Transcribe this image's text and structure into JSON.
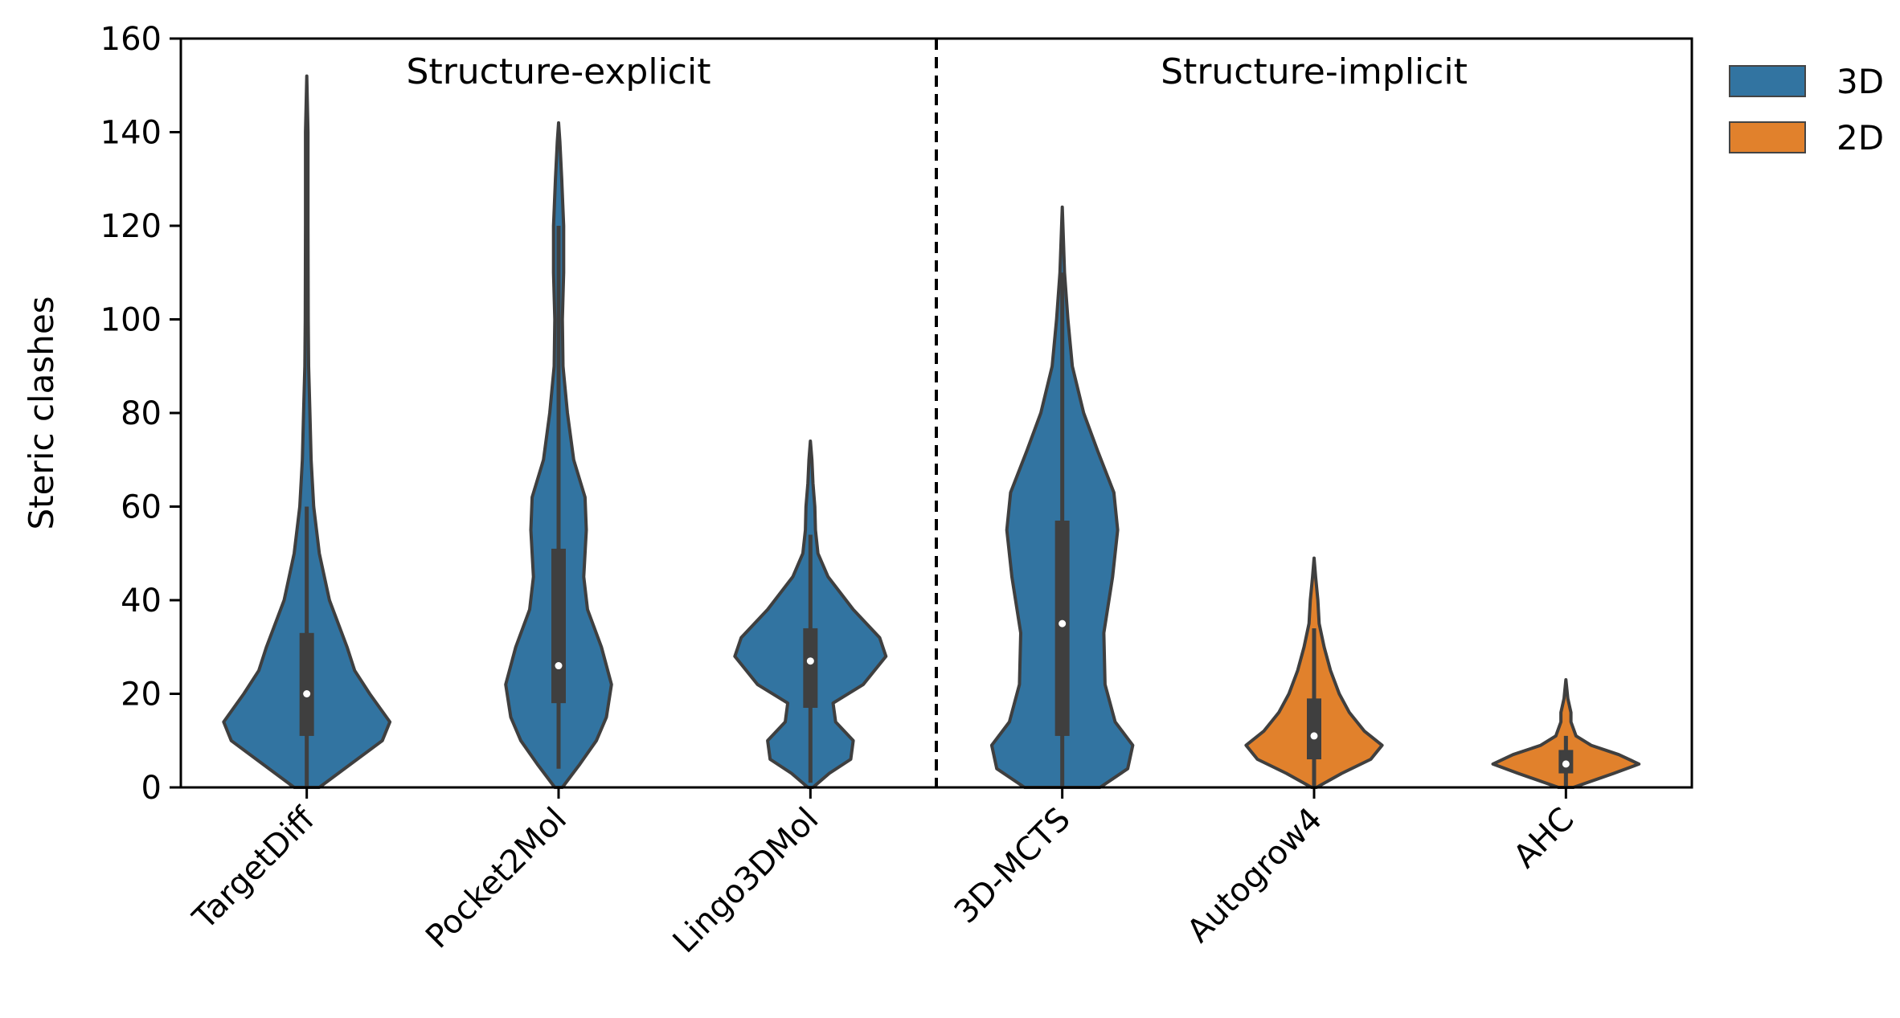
{
  "chart_data": {
    "type": "violin",
    "ylabel": "Steric clashes",
    "ylim": [
      0,
      160
    ],
    "yticks": [
      0,
      20,
      40,
      60,
      80,
      100,
      120,
      140,
      160
    ],
    "categories": [
      "TargetDiff",
      "Pocket2Mol",
      "Lingo3DMol",
      "3D-MCTS",
      "Autogrow4",
      "AHC"
    ],
    "sections": [
      {
        "label": "Structure-explicit"
      },
      {
        "label": "Structure-implicit"
      }
    ],
    "legend": {
      "position": "outside-top-right",
      "entries": [
        {
          "label": "3D",
          "color": "#3274a1"
        },
        {
          "label": "2D",
          "color": "#e1812c"
        }
      ]
    },
    "violins": [
      {
        "category": "TargetDiff",
        "group": "3D",
        "min": 0,
        "max": 152,
        "q1": 11,
        "median": 20,
        "q3": 33,
        "whisker_low": 0,
        "whisker_high": 60,
        "profile": [
          [
            0,
            0.1
          ],
          [
            5,
            0.35
          ],
          [
            10,
            0.6
          ],
          [
            14,
            0.66
          ],
          [
            20,
            0.5
          ],
          [
            25,
            0.38
          ],
          [
            30,
            0.32
          ],
          [
            40,
            0.18
          ],
          [
            50,
            0.1
          ],
          [
            60,
            0.055
          ],
          [
            70,
            0.035
          ],
          [
            80,
            0.025
          ],
          [
            90,
            0.015
          ],
          [
            100,
            0.012
          ],
          [
            120,
            0.01
          ],
          [
            140,
            0.01
          ],
          [
            152,
            0
          ]
        ]
      },
      {
        "category": "Pocket2Mol",
        "group": "3D",
        "min": 0,
        "max": 142,
        "q1": 18,
        "median": 26,
        "q3": 51,
        "whisker_low": 4,
        "whisker_high": 120,
        "profile": [
          [
            0,
            0.03
          ],
          [
            5,
            0.17
          ],
          [
            10,
            0.3
          ],
          [
            15,
            0.38
          ],
          [
            22,
            0.42
          ],
          [
            30,
            0.34
          ],
          [
            38,
            0.23
          ],
          [
            45,
            0.2
          ],
          [
            55,
            0.22
          ],
          [
            62,
            0.21
          ],
          [
            70,
            0.12
          ],
          [
            80,
            0.07
          ],
          [
            90,
            0.035
          ],
          [
            100,
            0.03
          ],
          [
            110,
            0.04
          ],
          [
            120,
            0.04
          ],
          [
            130,
            0.025
          ],
          [
            138,
            0.01
          ],
          [
            142,
            0
          ]
        ]
      },
      {
        "category": "Lingo3DMol",
        "group": "3D",
        "min": 0,
        "max": 74,
        "q1": 17,
        "median": 27,
        "q3": 34,
        "whisker_low": 1,
        "whisker_high": 54,
        "profile": [
          [
            0,
            0.02
          ],
          [
            3,
            0.15
          ],
          [
            6,
            0.32
          ],
          [
            10,
            0.34
          ],
          [
            14,
            0.2
          ],
          [
            18,
            0.18
          ],
          [
            22,
            0.42
          ],
          [
            28,
            0.6
          ],
          [
            32,
            0.55
          ],
          [
            38,
            0.34
          ],
          [
            45,
            0.14
          ],
          [
            50,
            0.06
          ],
          [
            55,
            0.04
          ],
          [
            60,
            0.035
          ],
          [
            65,
            0.02
          ],
          [
            70,
            0.012
          ],
          [
            74,
            0
          ]
        ]
      },
      {
        "category": "3D-MCTS",
        "group": "3D",
        "min": 0,
        "max": 124,
        "q1": 11,
        "median": 35,
        "q3": 57,
        "whisker_low": 0,
        "whisker_high": 110,
        "profile": [
          [
            0,
            0.3
          ],
          [
            4,
            0.52
          ],
          [
            9,
            0.56
          ],
          [
            14,
            0.42
          ],
          [
            22,
            0.34
          ],
          [
            33,
            0.33
          ],
          [
            45,
            0.4
          ],
          [
            55,
            0.44
          ],
          [
            63,
            0.41
          ],
          [
            72,
            0.28
          ],
          [
            80,
            0.17
          ],
          [
            90,
            0.08
          ],
          [
            100,
            0.045
          ],
          [
            110,
            0.018
          ],
          [
            124,
            0
          ]
        ]
      },
      {
        "category": "Autogrow4",
        "group": "2D",
        "min": 0,
        "max": 49,
        "q1": 6,
        "median": 11,
        "q3": 19,
        "whisker_low": 0,
        "whisker_high": 34,
        "profile": [
          [
            0,
            0.02
          ],
          [
            3,
            0.22
          ],
          [
            6,
            0.45
          ],
          [
            9,
            0.54
          ],
          [
            12,
            0.4
          ],
          [
            16,
            0.28
          ],
          [
            20,
            0.2
          ],
          [
            25,
            0.13
          ],
          [
            30,
            0.08
          ],
          [
            35,
            0.04
          ],
          [
            40,
            0.03
          ],
          [
            45,
            0.012
          ],
          [
            49,
            0
          ]
        ]
      },
      {
        "category": "AHC",
        "group": "2D",
        "min": 0,
        "max": 23,
        "q1": 3,
        "median": 5,
        "q3": 8,
        "whisker_low": 0,
        "whisker_high": 11,
        "profile": [
          [
            0,
            0.06
          ],
          [
            3,
            0.38
          ],
          [
            5,
            0.58
          ],
          [
            7,
            0.42
          ],
          [
            9,
            0.2
          ],
          [
            11,
            0.08
          ],
          [
            14,
            0.04
          ],
          [
            16,
            0.04
          ],
          [
            19,
            0.015
          ],
          [
            23,
            0
          ]
        ]
      }
    ]
  }
}
